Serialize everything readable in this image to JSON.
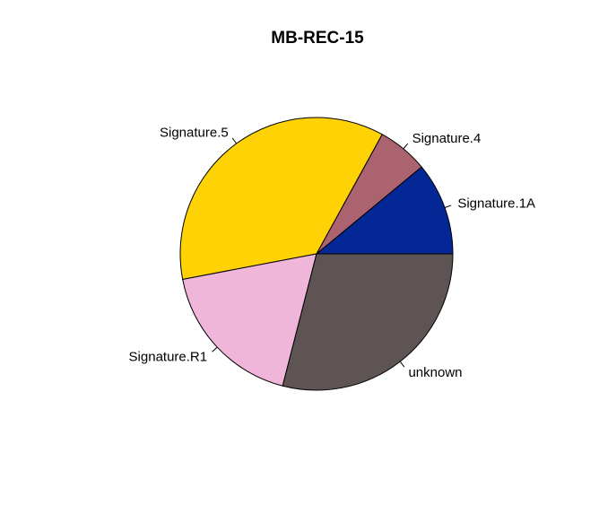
{
  "chart_data": {
    "type": "pie",
    "title": "MB-REC-15",
    "categories": [
      "Signature.1A",
      "Signature.4",
      "Signature.5",
      "Signature.R1",
      "unknown"
    ],
    "values": [
      0.11,
      0.06,
      0.36,
      0.18,
      0.29
    ],
    "colors": [
      "#032895",
      "#AC6370",
      "#FFD206",
      "#F0B6DA",
      "#5E5453"
    ],
    "start_angle_deg": 0,
    "direction": "counterclockwise",
    "border_color": "#000000",
    "legend": "none"
  }
}
